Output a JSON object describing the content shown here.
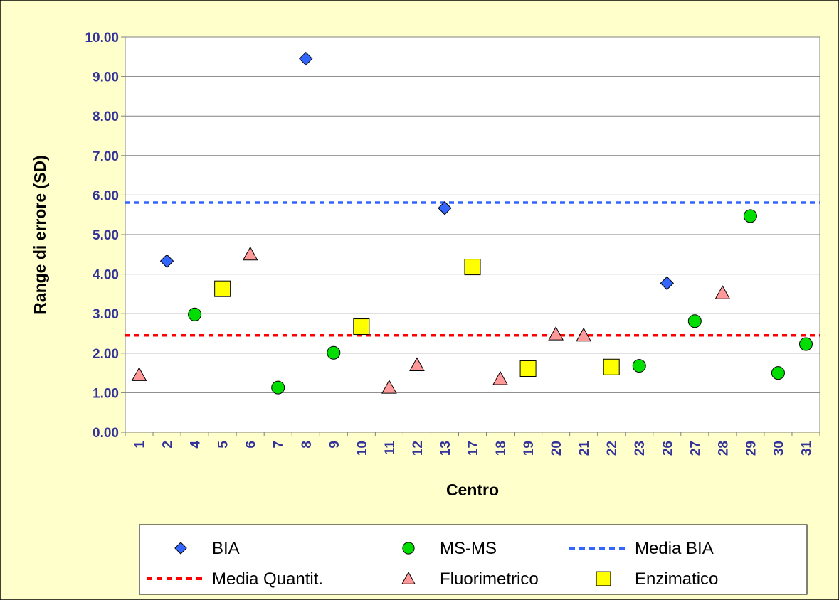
{
  "chart_data": {
    "type": "scatter",
    "title": "",
    "xlabel": "Centro",
    "ylabel": "Range di errore (SD)",
    "ylim": [
      0,
      10
    ],
    "ytick_step": 1,
    "ytick_decimals": 2,
    "grid": "horizontal",
    "legend_position": "bottom",
    "categories": [
      "1",
      "2",
      "4",
      "5",
      "6",
      "7",
      "8",
      "9",
      "10",
      "11",
      "12",
      "13",
      "17",
      "18",
      "19",
      "20",
      "21",
      "22",
      "23",
      "26",
      "27",
      "28",
      "29",
      "30",
      "31"
    ],
    "series": [
      {
        "name": "BIA",
        "marker": "diamond",
        "color": "#3366FF",
        "points": [
          {
            "x": "2",
            "y": 4.33
          },
          {
            "x": "8",
            "y": 9.45
          },
          {
            "x": "13",
            "y": 5.67
          },
          {
            "x": "26",
            "y": 3.77
          }
        ]
      },
      {
        "name": "MS-MS",
        "marker": "circle",
        "color": "#00DD00",
        "points": [
          {
            "x": "4",
            "y": 2.98
          },
          {
            "x": "7",
            "y": 1.13
          },
          {
            "x": "9",
            "y": 2.01
          },
          {
            "x": "23",
            "y": 1.68
          },
          {
            "x": "27",
            "y": 2.81
          },
          {
            "x": "29",
            "y": 5.47
          },
          {
            "x": "30",
            "y": 1.5
          },
          {
            "x": "31",
            "y": 2.23
          }
        ]
      },
      {
        "name": "Fluorimetrico",
        "marker": "triangle",
        "color": "#FF9999",
        "points": [
          {
            "x": "1",
            "y": 1.45
          },
          {
            "x": "6",
            "y": 4.5
          },
          {
            "x": "11",
            "y": 1.13
          },
          {
            "x": "12",
            "y": 1.7
          },
          {
            "x": "18",
            "y": 1.35
          },
          {
            "x": "20",
            "y": 2.48
          },
          {
            "x": "21",
            "y": 2.45
          },
          {
            "x": "28",
            "y": 3.52
          }
        ]
      },
      {
        "name": "Enzimatico",
        "marker": "square",
        "color": "#FFFF00",
        "points": [
          {
            "x": "5",
            "y": 3.63
          },
          {
            "x": "10",
            "y": 2.67
          },
          {
            "x": "17",
            "y": 4.18
          },
          {
            "x": "19",
            "y": 1.61
          },
          {
            "x": "22",
            "y": 1.65
          }
        ]
      }
    ],
    "reference_lines": [
      {
        "name": "Media BIA",
        "y": 5.81,
        "color": "#3366FF",
        "style": "dashed"
      },
      {
        "name": "Media Quantit.",
        "y": 2.45,
        "color": "#FF0000",
        "style": "dashed"
      }
    ],
    "legend_order": [
      "BIA",
      "MS-MS",
      "Media BIA",
      "Media Quantit.",
      "Fluorimetrico",
      "Enzimatico"
    ]
  }
}
